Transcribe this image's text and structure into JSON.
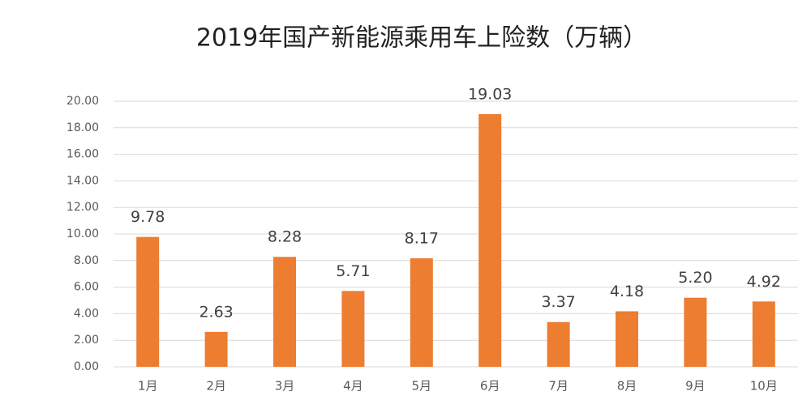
{
  "chart_data": {
    "type": "bar",
    "title": "2019年国产新能源乘用车上险数（万辆）",
    "categories": [
      "1月",
      "2月",
      "3月",
      "4月",
      "5月",
      "6月",
      "7月",
      "8月",
      "9月",
      "10月"
    ],
    "values": [
      9.78,
      2.63,
      8.28,
      5.71,
      8.17,
      19.03,
      3.37,
      4.18,
      5.2,
      4.92
    ],
    "value_labels": [
      "9.78",
      "2.63",
      "8.28",
      "5.71",
      "8.17",
      "19.03",
      "3.37",
      "4.18",
      "5.20",
      "4.92"
    ],
    "color": "#ed7d31",
    "ylim": [
      0,
      20
    ],
    "yticks": [
      {
        "value": 0,
        "label": "0.00"
      },
      {
        "value": 2,
        "label": "2.00"
      },
      {
        "value": 4,
        "label": "4.00"
      },
      {
        "value": 6,
        "label": "6.00"
      },
      {
        "value": 8,
        "label": "8.00"
      },
      {
        "value": 10,
        "label": "10.00"
      },
      {
        "value": 12,
        "label": "12.00"
      },
      {
        "value": 14,
        "label": "14.00"
      },
      {
        "value": 16,
        "label": "16.00"
      },
      {
        "value": 18,
        "label": "18.00"
      },
      {
        "value": 20,
        "label": "20.00"
      }
    ],
    "grid": true
  }
}
